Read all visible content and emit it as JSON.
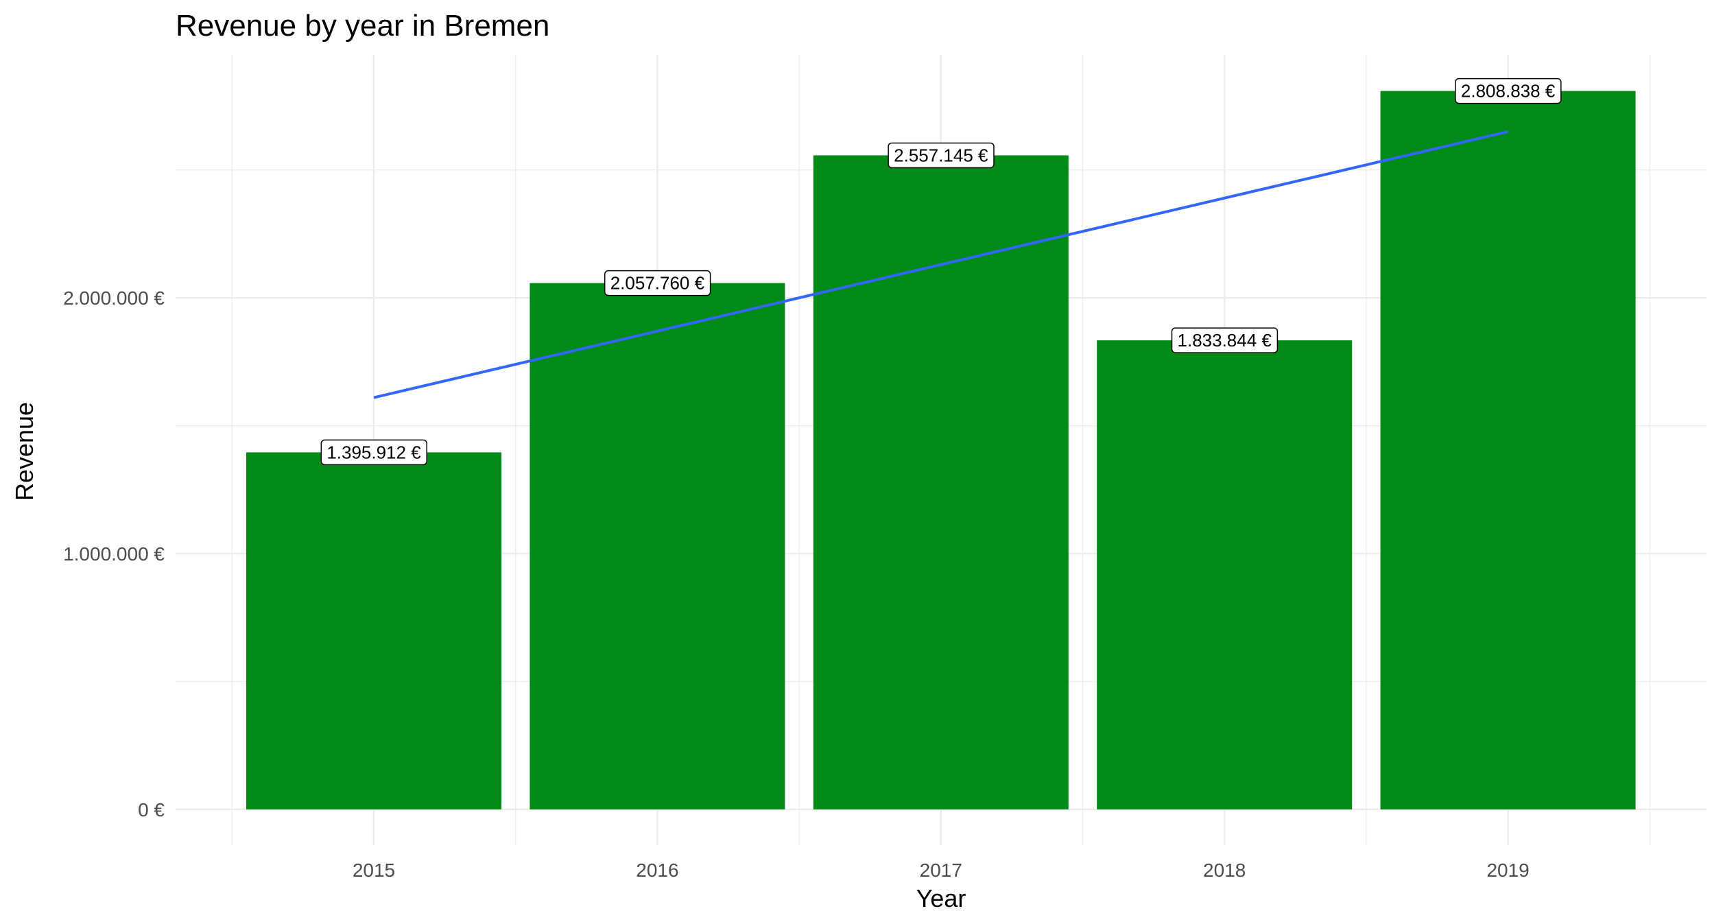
{
  "chart_data": {
    "type": "bar",
    "title": "Revenue by year in Bremen",
    "xlabel": "Year",
    "ylabel": "Revenue",
    "categories": [
      "2015",
      "2016",
      "2017",
      "2018",
      "2019"
    ],
    "values": [
      1395912,
      2057760,
      2557145,
      1833844,
      2808838
    ],
    "data_labels": [
      "1.395.912 €",
      "2.057.760 €",
      "2.557.145 €",
      "1.833.844 €",
      "2.808.838 €"
    ],
    "y_ticks": [
      0,
      1000000,
      2000000
    ],
    "y_tick_labels": [
      "0 €",
      "1.000.000 €",
      "2.000.000 €"
    ],
    "ylim": [
      -140000,
      2950000
    ],
    "trend_line": {
      "type": "linear",
      "start": 1610000,
      "end": 2650000
    },
    "grid": true,
    "legend": "none",
    "colors": {
      "bar": "#008b17",
      "trend": "#3366ff",
      "grid": "#ebebeb",
      "tick_label": "#4d4d4d"
    }
  }
}
